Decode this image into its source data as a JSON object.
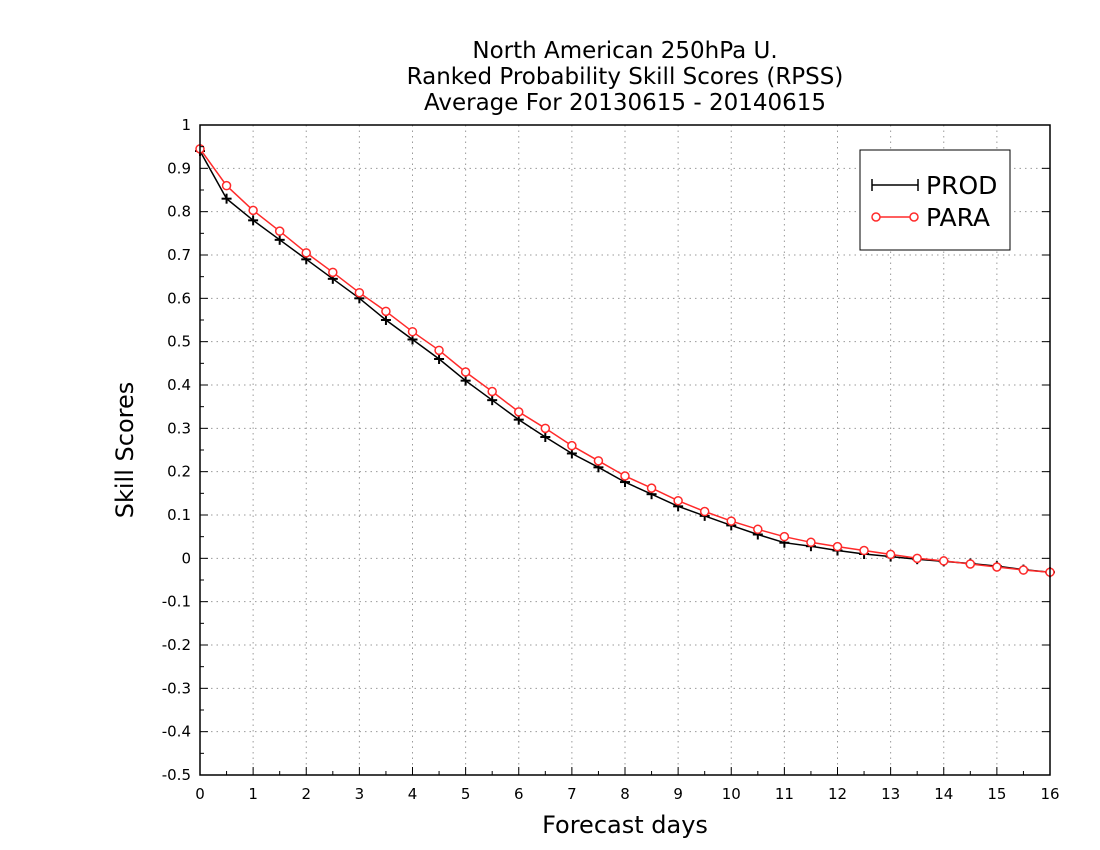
{
  "chart_data": {
    "type": "line",
    "title": [
      "North American 250hPa U.",
      "Ranked Probability Skill Scores (RPSS)",
      "Average For 20130615 - 20140615"
    ],
    "xlabel": "Forecast days",
    "ylabel": "Skill Scores",
    "xlim": [
      0,
      16
    ],
    "ylim": [
      -0.5,
      1
    ],
    "xticks": [
      "0",
      "1",
      "2",
      "3",
      "4",
      "5",
      "6",
      "7",
      "8",
      "9",
      "10",
      "11",
      "12",
      "13",
      "14",
      "15",
      "16"
    ],
    "yticks": [
      "1",
      "0.9",
      "0.8",
      "0.7",
      "0.6",
      "0.5",
      "0.4",
      "0.3",
      "0.2",
      "0.1",
      "0",
      "-0.1",
      "-0.2",
      "-0.3",
      "-0.4",
      "-0.5"
    ],
    "grid": true,
    "legend_position": "top-right",
    "x": [
      0,
      0.5,
      1,
      1.5,
      2,
      2.5,
      3,
      3.5,
      4,
      4.5,
      5,
      5.5,
      6,
      6.5,
      7,
      7.5,
      8,
      8.5,
      9,
      9.5,
      10,
      10.5,
      11,
      11.5,
      12,
      12.5,
      13,
      13.5,
      14,
      14.5,
      15,
      15.5,
      16
    ],
    "series": [
      {
        "name": "PROD",
        "color": "#000000",
        "marker": "plus",
        "values": [
          0.94,
          0.83,
          0.78,
          0.735,
          0.69,
          0.645,
          0.6,
          0.55,
          0.505,
          0.46,
          0.41,
          0.365,
          0.32,
          0.28,
          0.242,
          0.21,
          0.176,
          0.148,
          0.12,
          0.098,
          0.076,
          0.055,
          0.036,
          0.028,
          0.018,
          0.01,
          0.004,
          -0.002,
          -0.007,
          -0.012,
          -0.018,
          -0.026,
          -0.032
        ]
      },
      {
        "name": "PARA",
        "color": "#ff2a2a",
        "marker": "circle",
        "values": [
          0.945,
          0.86,
          0.803,
          0.755,
          0.705,
          0.66,
          0.613,
          0.57,
          0.523,
          0.48,
          0.43,
          0.385,
          0.338,
          0.3,
          0.26,
          0.225,
          0.19,
          0.162,
          0.133,
          0.108,
          0.086,
          0.067,
          0.05,
          0.037,
          0.027,
          0.018,
          0.009,
          0.0,
          -0.006,
          -0.013,
          -0.02,
          -0.027,
          -0.032
        ]
      }
    ]
  }
}
